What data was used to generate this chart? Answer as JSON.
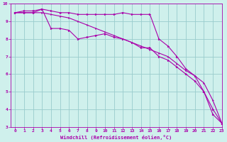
{
  "xlabel": "Windchill (Refroidissement éolien,°C)",
  "background_color": "#cff0ec",
  "line_color": "#aa00aa",
  "grid_color": "#99cccc",
  "x": [
    0,
    1,
    2,
    3,
    4,
    5,
    6,
    7,
    8,
    9,
    10,
    11,
    12,
    13,
    14,
    15,
    16,
    17,
    18,
    19,
    20,
    21,
    22,
    23
  ],
  "line1": [
    9.5,
    9.6,
    9.6,
    9.7,
    9.6,
    9.5,
    9.5,
    9.4,
    9.4,
    9.4,
    9.4,
    9.4,
    9.5,
    9.4,
    9.4,
    9.4,
    8.0,
    7.6,
    7.0,
    6.3,
    5.9,
    5.0,
    4.0,
    3.2
  ],
  "line2": [
    9.5,
    9.5,
    9.5,
    9.5,
    9.4,
    9.3,
    9.2,
    9.0,
    8.8,
    8.6,
    8.4,
    8.2,
    8.0,
    7.8,
    7.6,
    7.4,
    7.2,
    7.0,
    6.6,
    6.2,
    5.9,
    5.5,
    4.5,
    3.2
  ],
  "line3": [
    9.5,
    9.5,
    9.5,
    9.7,
    8.6,
    8.6,
    8.5,
    8.0,
    8.1,
    8.2,
    8.3,
    8.1,
    8.0,
    7.8,
    7.5,
    7.5,
    7.0,
    6.8,
    6.4,
    6.0,
    5.6,
    5.0,
    3.7,
    3.2
  ],
  "ylim": [
    3,
    10
  ],
  "yticks": [
    3,
    4,
    5,
    6,
    7,
    8,
    9,
    10
  ],
  "xlim": [
    -0.5,
    23
  ],
  "xticks": [
    0,
    1,
    2,
    3,
    4,
    5,
    6,
    7,
    8,
    9,
    10,
    11,
    12,
    13,
    14,
    15,
    16,
    17,
    18,
    19,
    20,
    21,
    22,
    23
  ]
}
